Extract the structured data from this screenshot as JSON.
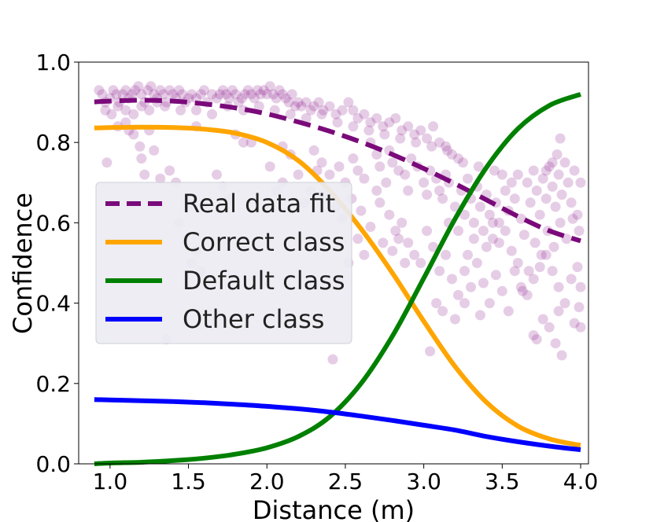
{
  "chart_data": {
    "type": "line",
    "title": "",
    "xlabel": "Distance (m)",
    "ylabel": "Confidence",
    "xlim": [
      0.8,
      4.05
    ],
    "ylim": [
      0.0,
      1.0
    ],
    "x_ticks": [
      1.0,
      1.5,
      2.0,
      2.5,
      3.0,
      3.5,
      4.0
    ],
    "x_tick_labels": [
      "1.0",
      "1.5",
      "2.0",
      "2.5",
      "3.0",
      "3.5",
      "4.0"
    ],
    "y_ticks": [
      0.0,
      0.2,
      0.4,
      0.6,
      0.8,
      1.0
    ],
    "y_tick_labels": [
      "0.0",
      "0.2",
      "0.4",
      "0.6",
      "0.8",
      "1.0"
    ],
    "grid": false,
    "legend_position": "center-left",
    "x": [
      0.9,
      1.0,
      1.2,
      1.4,
      1.6,
      1.8,
      2.0,
      2.2,
      2.4,
      2.6,
      2.8,
      3.0,
      3.2,
      3.4,
      3.6,
      3.8,
      4.0
    ],
    "series": [
      {
        "name": "Real data fit",
        "style": "dashed",
        "color": "#7a0a7a",
        "values": [
          0.901,
          0.903,
          0.905,
          0.903,
          0.896,
          0.886,
          0.871,
          0.851,
          0.828,
          0.801,
          0.77,
          0.735,
          0.697,
          0.657,
          0.616,
          0.58,
          0.555
        ]
      },
      {
        "name": "Correct class",
        "style": "solid",
        "color": "#ffa500",
        "values": [
          0.836,
          0.837,
          0.838,
          0.837,
          0.833,
          0.823,
          0.8,
          0.755,
          0.68,
          0.585,
          0.475,
          0.355,
          0.242,
          0.153,
          0.094,
          0.062,
          0.046
        ]
      },
      {
        "name": "Default class",
        "style": "solid",
        "color": "#008000",
        "values": [
          0.0,
          0.002,
          0.004,
          0.008,
          0.014,
          0.024,
          0.04,
          0.068,
          0.117,
          0.2,
          0.318,
          0.462,
          0.61,
          0.738,
          0.834,
          0.892,
          0.92
        ]
      },
      {
        "name": "Other class",
        "style": "solid",
        "color": "#0000ff",
        "values": [
          0.16,
          0.159,
          0.157,
          0.155,
          0.152,
          0.148,
          0.143,
          0.137,
          0.129,
          0.119,
          0.108,
          0.096,
          0.084,
          0.068,
          0.055,
          0.044,
          0.035
        ]
      }
    ],
    "scatter": {
      "name": "Real data",
      "color": "#8b1a8b",
      "opacity": 0.22,
      "points": [
        [
          0.93,
          0.93
        ],
        [
          0.95,
          0.92
        ],
        [
          0.97,
          0.9
        ],
        [
          1.0,
          0.91
        ],
        [
          1.02,
          0.93
        ],
        [
          1.04,
          0.92
        ],
        [
          1.06,
          0.9
        ],
        [
          1.08,
          0.92
        ],
        [
          1.1,
          0.93
        ],
        [
          1.12,
          0.91
        ],
        [
          1.14,
          0.92
        ],
        [
          1.16,
          0.93
        ],
        [
          1.18,
          0.94
        ],
        [
          1.2,
          0.92
        ],
        [
          1.22,
          0.9
        ],
        [
          1.24,
          0.93
        ],
        [
          1.26,
          0.94
        ],
        [
          1.28,
          0.92
        ],
        [
          1.3,
          0.91
        ],
        [
          1.32,
          0.93
        ],
        [
          1.34,
          0.92
        ],
        [
          1.36,
          0.9
        ],
        [
          1.38,
          0.93
        ],
        [
          1.4,
          0.92
        ],
        [
          1.42,
          0.91
        ],
        [
          1.44,
          0.93
        ],
        [
          1.46,
          0.92
        ],
        [
          1.48,
          0.9
        ],
        [
          1.5,
          0.91
        ],
        [
          1.52,
          0.92
        ],
        [
          1.55,
          0.91
        ],
        [
          1.58,
          0.92
        ],
        [
          1.6,
          0.93
        ],
        [
          1.62,
          0.9
        ],
        [
          1.65,
          0.92
        ],
        [
          1.68,
          0.91
        ],
        [
          1.7,
          0.92
        ],
        [
          1.72,
          0.93
        ],
        [
          1.74,
          0.92
        ],
        [
          1.76,
          0.91
        ],
        [
          1.78,
          0.93
        ],
        [
          1.8,
          0.92
        ],
        [
          1.82,
          0.9
        ],
        [
          1.84,
          0.91
        ],
        [
          1.86,
          0.92
        ],
        [
          1.88,
          0.93
        ],
        [
          1.9,
          0.92
        ],
        [
          1.92,
          0.91
        ],
        [
          1.94,
          0.93
        ],
        [
          1.96,
          0.92
        ],
        [
          1.98,
          0.93
        ],
        [
          2.0,
          0.92
        ],
        [
          2.02,
          0.94
        ],
        [
          2.04,
          0.92
        ],
        [
          2.06,
          0.91
        ],
        [
          2.08,
          0.93
        ],
        [
          2.1,
          0.92
        ],
        [
          2.12,
          0.91
        ],
        [
          2.14,
          0.9
        ],
        [
          2.16,
          0.92
        ],
        [
          2.18,
          0.89
        ],
        [
          2.2,
          0.9
        ],
        [
          2.22,
          0.89
        ],
        [
          2.25,
          0.9
        ],
        [
          2.28,
          0.88
        ],
        [
          2.3,
          0.89
        ],
        [
          2.33,
          0.9
        ],
        [
          2.36,
          0.88
        ],
        [
          2.4,
          0.89
        ],
        [
          2.44,
          0.87
        ],
        [
          2.48,
          0.88
        ],
        [
          2.52,
          0.9
        ],
        [
          2.55,
          0.88
        ],
        [
          2.58,
          0.86
        ],
        [
          2.62,
          0.87
        ],
        [
          2.66,
          0.85
        ],
        [
          2.7,
          0.86
        ],
        [
          2.74,
          0.84
        ],
        [
          2.78,
          0.85
        ],
        [
          2.82,
          0.86
        ],
        [
          2.86,
          0.83
        ],
        [
          2.9,
          0.84
        ],
        [
          2.94,
          0.82
        ],
        [
          2.98,
          0.83
        ],
        [
          3.02,
          0.81
        ],
        [
          3.06,
          0.84
        ],
        [
          3.1,
          0.8
        ],
        [
          3.14,
          0.79
        ],
        [
          3.18,
          0.77
        ],
        [
          3.22,
          0.76
        ],
        [
          0.97,
          0.88
        ],
        [
          1.01,
          0.87
        ],
        [
          1.05,
          0.89
        ],
        [
          1.1,
          0.88
        ],
        [
          1.15,
          0.87
        ],
        [
          1.2,
          0.89
        ],
        [
          1.25,
          0.88
        ],
        [
          1.3,
          0.9
        ],
        [
          1.35,
          0.89
        ],
        [
          1.45,
          0.88
        ],
        [
          1.55,
          0.88
        ],
        [
          1.65,
          0.87
        ],
        [
          1.75,
          0.89
        ],
        [
          1.85,
          0.88
        ],
        [
          1.95,
          0.89
        ],
        [
          2.05,
          0.88
        ],
        [
          2.15,
          0.87
        ],
        [
          2.25,
          0.86
        ],
        [
          2.35,
          0.87
        ],
        [
          2.45,
          0.85
        ],
        [
          2.55,
          0.84
        ],
        [
          2.65,
          0.83
        ],
        [
          2.75,
          0.82
        ],
        [
          2.85,
          0.81
        ],
        [
          2.95,
          0.8
        ],
        [
          3.05,
          0.79
        ],
        [
          3.15,
          0.78
        ],
        [
          3.25,
          0.75
        ],
        [
          3.35,
          0.74
        ],
        [
          3.45,
          0.73
        ],
        [
          0.98,
          0.75
        ],
        [
          1.12,
          0.83
        ],
        [
          1.15,
          0.82
        ],
        [
          1.19,
          0.79
        ],
        [
          1.2,
          0.76
        ],
        [
          1.22,
          0.72
        ],
        [
          1.28,
          0.78
        ],
        [
          1.32,
          0.71
        ],
        [
          1.38,
          0.73
        ],
        [
          1.42,
          0.7
        ],
        [
          1.05,
          0.84
        ],
        [
          1.1,
          0.85
        ],
        [
          1.25,
          0.83
        ],
        [
          1.55,
          0.84
        ],
        [
          1.8,
          0.82
        ],
        [
          1.85,
          0.8
        ],
        [
          1.9,
          0.8
        ],
        [
          2.1,
          0.79
        ],
        [
          2.15,
          0.77
        ],
        [
          2.3,
          0.78
        ],
        [
          2.35,
          0.75
        ],
        [
          2.4,
          0.72
        ],
        [
          2.46,
          0.74
        ],
        [
          2.5,
          0.7
        ],
        [
          2.55,
          0.76
        ],
        [
          2.58,
          0.73
        ],
        [
          2.62,
          0.71
        ],
        [
          2.66,
          0.8
        ],
        [
          2.7,
          0.77
        ],
        [
          2.72,
          0.74
        ],
        [
          2.76,
          0.7
        ],
        [
          2.78,
          0.78
        ],
        [
          2.8,
          0.75
        ],
        [
          2.84,
          0.73
        ],
        [
          2.88,
          0.72
        ],
        [
          2.9,
          0.68
        ],
        [
          2.92,
          0.76
        ],
        [
          2.96,
          0.74
        ],
        [
          3.0,
          0.7
        ],
        [
          3.02,
          0.67
        ],
        [
          3.04,
          0.73
        ],
        [
          3.08,
          0.71
        ],
        [
          3.1,
          0.68
        ],
        [
          3.12,
          0.66
        ],
        [
          3.14,
          0.72
        ],
        [
          3.16,
          0.7
        ],
        [
          3.2,
          0.64
        ],
        [
          3.24,
          0.68
        ],
        [
          3.26,
          0.62
        ],
        [
          3.28,
          0.71
        ],
        [
          3.3,
          0.66
        ],
        [
          3.32,
          0.6
        ],
        [
          3.34,
          0.69
        ],
        [
          3.36,
          0.64
        ],
        [
          3.38,
          0.58
        ],
        [
          3.4,
          0.67
        ],
        [
          3.42,
          0.62
        ],
        [
          3.44,
          0.56
        ],
        [
          3.46,
          0.65
        ],
        [
          3.48,
          0.6
        ],
        [
          3.5,
          0.72
        ],
        [
          3.52,
          0.68
        ],
        [
          3.54,
          0.63
        ],
        [
          3.56,
          0.7
        ],
        [
          3.58,
          0.66
        ],
        [
          3.6,
          0.72
        ],
        [
          3.62,
          0.61
        ],
        [
          3.64,
          0.57
        ],
        [
          3.66,
          0.7
        ],
        [
          3.68,
          0.65
        ],
        [
          3.7,
          0.73
        ],
        [
          3.72,
          0.68
        ],
        [
          3.74,
          0.62
        ],
        [
          3.76,
          0.71
        ],
        [
          3.78,
          0.66
        ],
        [
          3.8,
          0.74
        ],
        [
          3.82,
          0.69
        ],
        [
          3.84,
          0.64
        ],
        [
          3.86,
          0.72
        ],
        [
          3.88,
          0.67
        ],
        [
          3.9,
          0.75
        ],
        [
          3.92,
          0.7
        ],
        [
          3.94,
          0.65
        ],
        [
          3.96,
          0.73
        ],
        [
          3.98,
          0.62
        ],
        [
          4.0,
          0.7
        ],
        [
          3.85,
          0.77
        ],
        [
          3.87,
          0.81
        ],
        [
          3.82,
          0.75
        ],
        [
          3.78,
          0.73
        ],
        [
          2.7,
          0.68
        ],
        [
          2.72,
          0.65
        ],
        [
          2.78,
          0.62
        ],
        [
          2.82,
          0.58
        ],
        [
          2.86,
          0.6
        ],
        [
          2.9,
          0.55
        ],
        [
          2.94,
          0.52
        ],
        [
          2.98,
          0.5
        ],
        [
          3.02,
          0.58
        ],
        [
          3.06,
          0.54
        ],
        [
          3.1,
          0.48
        ],
        [
          3.14,
          0.52
        ],
        [
          3.18,
          0.46
        ],
        [
          3.22,
          0.42
        ],
        [
          3.26,
          0.48
        ],
        [
          3.3,
          0.44
        ],
        [
          3.34,
          0.5
        ],
        [
          3.38,
          0.45
        ],
        [
          3.42,
          0.4
        ],
        [
          3.46,
          0.47
        ],
        [
          3.5,
          0.43
        ],
        [
          3.54,
          0.38
        ],
        [
          3.58,
          0.48
        ],
        [
          3.62,
          0.44
        ],
        [
          3.66,
          0.42
        ],
        [
          3.7,
          0.46
        ],
        [
          3.74,
          0.49
        ],
        [
          3.78,
          0.52
        ],
        [
          3.82,
          0.48
        ],
        [
          3.86,
          0.44
        ],
        [
          3.9,
          0.4
        ],
        [
          3.94,
          0.46
        ],
        [
          3.98,
          0.49
        ],
        [
          4.0,
          0.44
        ],
        [
          3.99,
          0.39
        ],
        [
          3.96,
          0.35
        ],
        [
          3.76,
          0.36
        ],
        [
          3.72,
          0.31
        ],
        [
          3.7,
          0.32
        ],
        [
          3.84,
          0.3
        ],
        [
          3.88,
          0.27
        ],
        [
          3.8,
          0.34
        ],
        [
          3.86,
          0.38
        ],
        [
          3.63,
          0.43
        ],
        [
          3.67,
          0.48
        ],
        [
          3.71,
          0.55
        ],
        [
          3.75,
          0.52
        ],
        [
          3.79,
          0.58
        ],
        [
          3.83,
          0.54
        ],
        [
          3.87,
          0.6
        ],
        [
          3.91,
          0.56
        ],
        [
          3.95,
          0.61
        ],
        [
          3.99,
          0.58
        ],
        [
          4.0,
          0.34
        ],
        [
          3.36,
          0.37
        ],
        [
          3.26,
          0.4
        ],
        [
          3.2,
          0.36
        ],
        [
          3.12,
          0.38
        ],
        [
          3.08,
          0.4
        ],
        [
          3.04,
          0.28
        ],
        [
          2.42,
          0.26
        ],
        [
          2.46,
          0.46
        ],
        [
          2.52,
          0.5
        ],
        [
          2.58,
          0.56
        ],
        [
          2.62,
          0.52
        ],
        [
          2.66,
          0.59
        ],
        [
          2.74,
          0.55
        ],
        [
          2.8,
          0.53
        ],
        [
          2.84,
          0.56
        ],
        [
          2.88,
          0.5
        ],
        [
          3.16,
          0.6
        ],
        [
          3.22,
          0.58
        ],
        [
          3.28,
          0.52
        ],
        [
          3.32,
          0.56
        ],
        [
          3.4,
          0.54
        ],
        [
          3.44,
          0.6
        ],
        [
          3.48,
          0.55
        ],
        [
          3.52,
          0.58
        ],
        [
          3.56,
          0.53
        ],
        [
          3.6,
          0.5
        ],
        [
          1.52,
          0.5
        ],
        [
          1.55,
          0.53
        ],
        [
          1.58,
          0.48
        ],
        [
          1.36,
          0.31
        ],
        [
          1.44,
          0.6
        ],
        [
          1.68,
          0.72
        ],
        [
          1.72,
          0.69
        ],
        [
          1.76,
          0.66
        ],
        [
          2.02,
          0.74
        ],
        [
          2.06,
          0.68
        ],
        [
          2.1,
          0.7
        ],
        [
          2.2,
          0.72
        ],
        [
          2.24,
          0.65
        ],
        [
          2.28,
          0.68
        ],
        [
          2.32,
          0.73
        ],
        [
          2.36,
          0.67
        ],
        [
          2.44,
          0.64
        ],
        [
          2.48,
          0.61
        ],
        [
          2.54,
          0.66
        ],
        [
          2.6,
          0.63
        ]
      ]
    }
  }
}
